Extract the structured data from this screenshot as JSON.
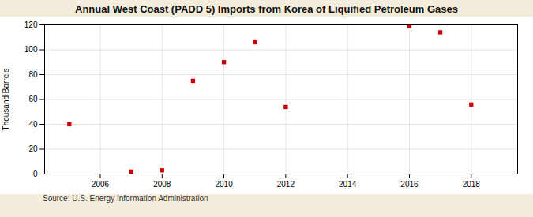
{
  "chart_data": {
    "type": "scatter",
    "title": "Annual West Coast (PADD 5) Imports from Korea of Liquified Petroleum Gases",
    "ylabel": "Thousand Barrels",
    "source": "Source: U.S. Energy Information Administration",
    "x": [
      2005,
      2007,
      2008,
      2009,
      2010,
      2011,
      2012,
      2016,
      2017,
      2018
    ],
    "values": [
      40,
      2,
      3,
      75,
      90,
      106,
      54,
      119,
      114,
      56
    ],
    "color": "#cc0000",
    "marker": "square",
    "xlim": [
      2004.2,
      2019.5
    ],
    "ylim": [
      0,
      120
    ],
    "xticks": [
      2006,
      2008,
      2010,
      2012,
      2014,
      2016,
      2018
    ],
    "yticks": [
      0,
      20,
      40,
      60,
      80,
      100,
      120
    ],
    "grid": true
  }
}
